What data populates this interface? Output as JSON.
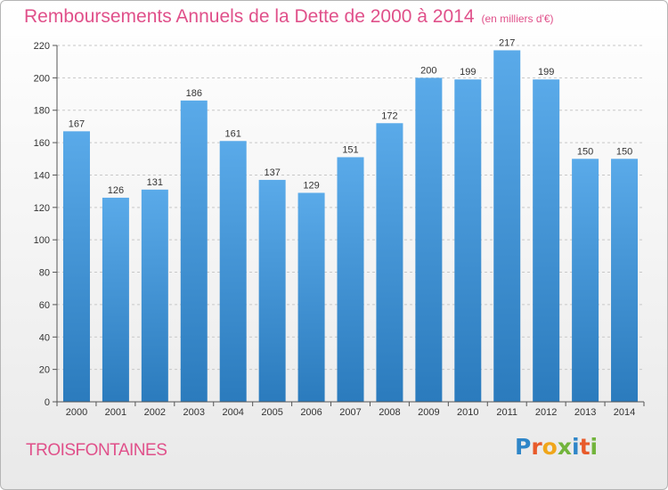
{
  "title": "Remboursements Annuels de la Dette de 2000 à 2014",
  "unit_note": "(en milliers d'€)",
  "commune": "TROISFONTAINES",
  "logo": {
    "text": "Proxiti",
    "letter_colors": [
      "#2f86c8",
      "#e85a2a",
      "#f0a61b",
      "#72b43c",
      "#2f86c8",
      "#e85a2a",
      "#72b43c"
    ]
  },
  "colors": {
    "bar_light": "#5aaae9",
    "bar_dark": "#2b7bbd",
    "grid": "#c8c8c8",
    "axis": "#555555",
    "text": "#333333",
    "accent": "#e0508a"
  },
  "chart_data": {
    "type": "bar",
    "title": "Remboursements Annuels de la Dette de 2000 à 2014",
    "xlabel": "",
    "ylabel": "en milliers d'€",
    "categories": [
      "2000",
      "2001",
      "2002",
      "2003",
      "2004",
      "2005",
      "2006",
      "2007",
      "2008",
      "2009",
      "2010",
      "2011",
      "2012",
      "2013",
      "2014"
    ],
    "values": [
      167,
      126,
      131,
      186,
      161,
      137,
      129,
      151,
      172,
      200,
      199,
      217,
      199,
      150,
      150
    ],
    "ylim": [
      0,
      220
    ],
    "yticks": [
      0,
      20,
      40,
      60,
      80,
      100,
      120,
      140,
      160,
      180,
      200,
      220
    ],
    "grid": true,
    "legend": "none"
  }
}
